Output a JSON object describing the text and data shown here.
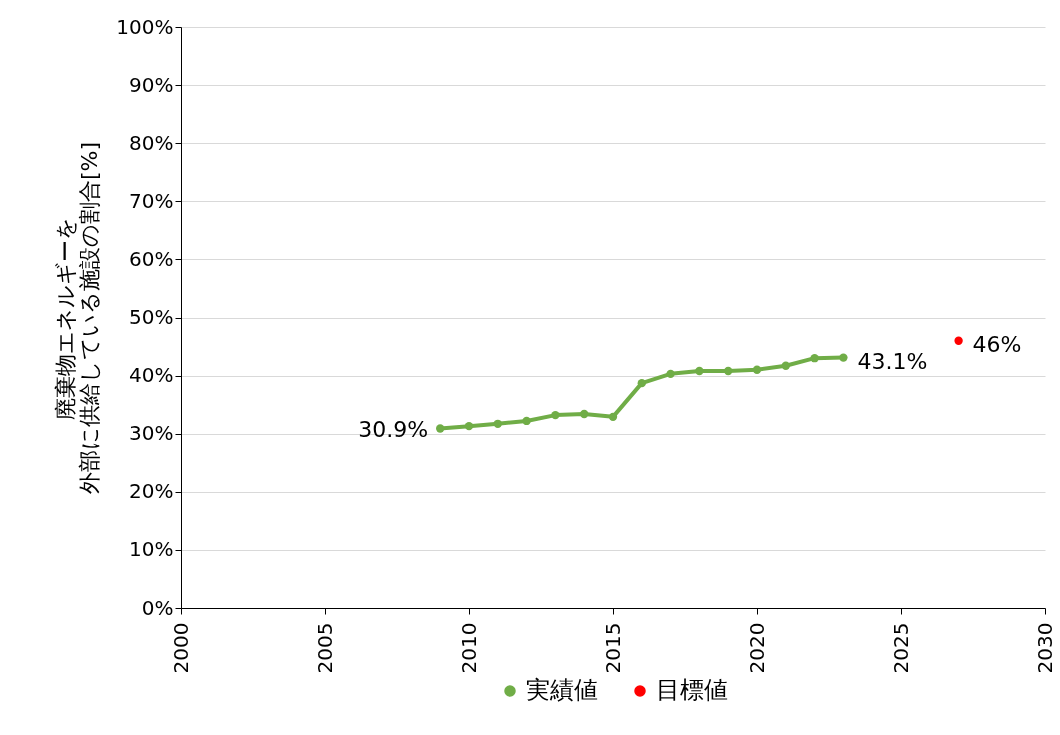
{
  "chart_data": {
    "type": "line",
    "ylabel": "廃棄物エネルギーを外部に供給している施設の割合[%]",
    "xlim": [
      2000,
      2030
    ],
    "xticks": [
      2000,
      2005,
      2010,
      2015,
      2020,
      2025,
      2030
    ],
    "ylim": [
      0,
      100
    ],
    "yticks": [
      {
        "value": 0,
        "label": "0%"
      },
      {
        "value": 10,
        "label": "10%"
      },
      {
        "value": 20,
        "label": "20%"
      },
      {
        "value": 30,
        "label": "30%"
      },
      {
        "value": 40,
        "label": "40%"
      },
      {
        "value": 50,
        "label": "50%"
      },
      {
        "value": 60,
        "label": "60%"
      },
      {
        "value": 70,
        "label": "70%"
      },
      {
        "value": 80,
        "label": "80%"
      },
      {
        "value": 90,
        "label": "90%"
      },
      {
        "value": 100,
        "label": "100%"
      }
    ],
    "grid": "y",
    "legend": "bottom",
    "marker": "circle",
    "series": [
      {
        "name": "実績値",
        "color": "#70ad47",
        "x": [
          2009,
          2010,
          2011,
          2012,
          2013,
          2014,
          2015,
          2016,
          2017,
          2018,
          2019,
          2020,
          2021,
          2022,
          2023
        ],
        "values": [
          30.9,
          31.3,
          31.7,
          32.2,
          33.2,
          33.4,
          32.9,
          38.7,
          40.3,
          40.8,
          40.8,
          41.0,
          41.7,
          43.0,
          43.1
        ],
        "value_labels": [
          "30.9%",
          null,
          null,
          null,
          null,
          null,
          null,
          null,
          null,
          null,
          null,
          null,
          null,
          null,
          "43.1%"
        ]
      },
      {
        "name": "目標値",
        "type": "scatter",
        "color": "#ff0000",
        "x": [
          2027
        ],
        "values": [
          46
        ],
        "value_labels": [
          "46%"
        ]
      }
    ]
  }
}
